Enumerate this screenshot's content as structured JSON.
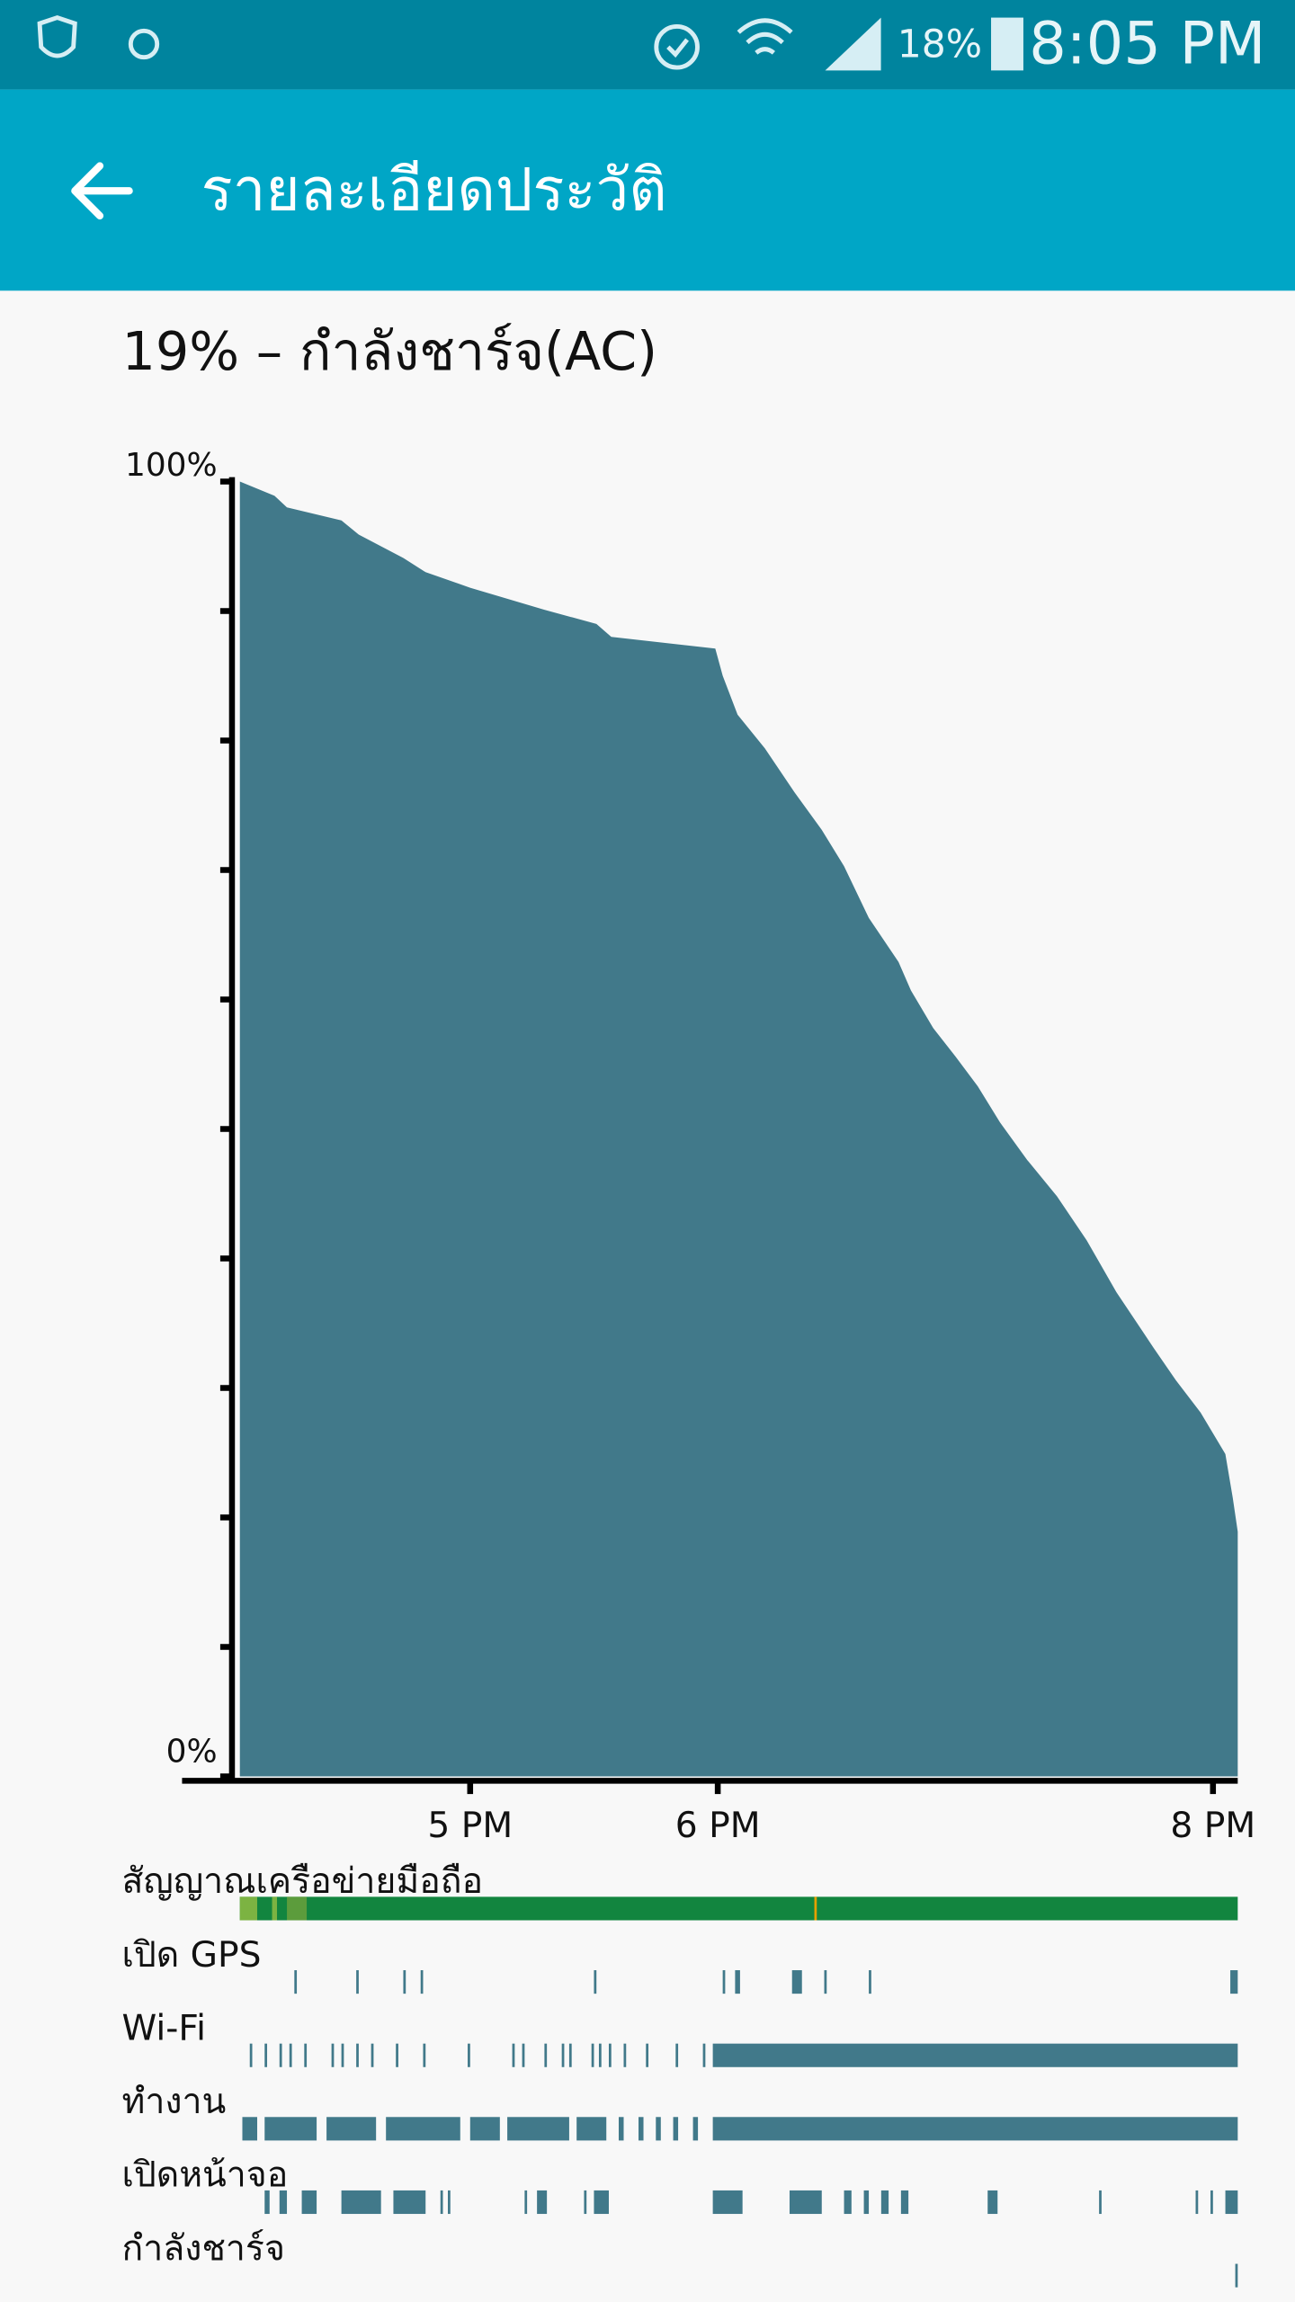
{
  "status_bar": {
    "battery": "18%",
    "time": "8:05 PM"
  },
  "app_bar": {
    "title": "รายละเอียดประวัติ"
  },
  "chart_data": {
    "type": "area",
    "title": "19% – กำลังชาร์จ(AC)",
    "x": [
      16.07,
      16.21,
      16.26,
      16.48,
      16.55,
      16.73,
      16.82,
      17.0,
      17.3,
      17.51,
      17.57,
      17.99,
      18.02,
      18.08,
      18.19,
      18.31,
      18.42,
      18.51,
      18.61,
      18.73,
      18.78,
      18.87,
      18.96,
      19.05,
      19.14,
      19.25,
      19.37,
      19.49,
      19.61,
      19.76,
      19.85,
      19.95,
      20.05,
      20.08,
      20.1
    ],
    "values": [
      100,
      98.9,
      98,
      97,
      95.9,
      94.1,
      93,
      91.8,
      90.1,
      89,
      88,
      87.1,
      85,
      82,
      79.4,
      76,
      73.1,
      70.3,
      66.3,
      62.9,
      60.7,
      57.8,
      55.6,
      53.3,
      50.5,
      47.6,
      44.8,
      41.4,
      37.4,
      33.1,
      30.6,
      28.1,
      24.9,
      21.5,
      18.9
    ],
    "color": "#41798a",
    "xlim": [
      16.05,
      20.1
    ],
    "xticks": [
      {
        "value": 17,
        "label": "5 PM"
      },
      {
        "value": 18,
        "label": "6 PM"
      },
      {
        "value": 20,
        "label": "8 PM"
      }
    ],
    "ylim": [
      0,
      100
    ],
    "yticks": [
      {
        "value": 0,
        "label": "0%"
      },
      {
        "value": 100,
        "label": "100%"
      }
    ],
    "yminor_ticks": [
      10,
      20,
      30,
      40,
      50,
      60,
      70,
      80,
      90
    ],
    "activity": [
      {
        "name": "สัญญาณเครือข่ายมือถือ",
        "color": "#12853f",
        "segments": [
          [
            16.07,
            20.1
          ],
          [
            16.07,
            16.14
          ],
          [
            16.2,
            16.22
          ],
          [
            16.26,
            16.34
          ],
          [
            18.39,
            18.4
          ]
        ],
        "segment_colors": [
          "#12853f",
          "#7cb342",
          "#7cb342",
          "#5c9c3c",
          "#e5a000"
        ]
      },
      {
        "name": "เปิด GPS",
        "color": "#41798a",
        "segments": [
          [
            16.29,
            16.3
          ],
          [
            16.54,
            16.55
          ],
          [
            16.73,
            16.74
          ],
          [
            16.8,
            16.81
          ],
          [
            17.5,
            17.51
          ],
          [
            18.02,
            18.03
          ],
          [
            18.07,
            18.09
          ],
          [
            18.3,
            18.34
          ],
          [
            18.43,
            18.44
          ],
          [
            18.61,
            18.62
          ],
          [
            20.07,
            20.1
          ]
        ]
      },
      {
        "name": "Wi-Fi",
        "color": "#41798a",
        "segments": [
          [
            16.11,
            16.12
          ],
          [
            16.17,
            16.18
          ],
          [
            16.23,
            16.24
          ],
          [
            16.27,
            16.28
          ],
          [
            16.33,
            16.34
          ],
          [
            16.44,
            16.45
          ],
          [
            16.48,
            16.49
          ],
          [
            16.54,
            16.55
          ],
          [
            16.6,
            16.61
          ],
          [
            16.7,
            16.71
          ],
          [
            16.81,
            16.82
          ],
          [
            16.99,
            17.0
          ],
          [
            17.17,
            17.18
          ],
          [
            17.21,
            17.22
          ],
          [
            17.3,
            17.31
          ],
          [
            17.37,
            17.38
          ],
          [
            17.4,
            17.41
          ],
          [
            17.49,
            17.5
          ],
          [
            17.52,
            17.53
          ],
          [
            17.56,
            17.57
          ],
          [
            17.62,
            17.63
          ],
          [
            17.71,
            17.72
          ],
          [
            17.83,
            17.84
          ],
          [
            17.94,
            17.95
          ],
          [
            17.98,
            20.1
          ]
        ]
      },
      {
        "name": "ทำงาน",
        "color": "#41798a",
        "segments": [
          [
            16.08,
            16.14
          ],
          [
            16.17,
            16.38
          ],
          [
            16.42,
            16.62
          ],
          [
            16.66,
            16.96
          ],
          [
            17.0,
            17.12
          ],
          [
            17.15,
            17.4
          ],
          [
            17.43,
            17.55
          ],
          [
            17.6,
            17.62
          ],
          [
            17.68,
            17.7
          ],
          [
            17.75,
            17.77
          ],
          [
            17.82,
            17.84
          ],
          [
            17.9,
            17.92
          ],
          [
            17.98,
            20.1
          ]
        ]
      },
      {
        "name": "เปิดหน้าจอ",
        "color": "#41798a",
        "segments": [
          [
            16.17,
            16.19
          ],
          [
            16.23,
            16.26
          ],
          [
            16.32,
            16.38
          ],
          [
            16.48,
            16.64
          ],
          [
            16.69,
            16.82
          ],
          [
            16.88,
            16.89
          ],
          [
            16.91,
            16.92
          ],
          [
            17.22,
            17.23
          ],
          [
            17.27,
            17.31
          ],
          [
            17.46,
            17.47
          ],
          [
            17.5,
            17.56
          ],
          [
            17.98,
            18.1
          ],
          [
            18.29,
            18.42
          ],
          [
            18.51,
            18.54
          ],
          [
            18.59,
            18.61
          ],
          [
            18.66,
            18.69
          ],
          [
            18.74,
            18.77
          ],
          [
            19.09,
            19.13
          ],
          [
            19.54,
            19.55
          ],
          [
            19.93,
            19.94
          ],
          [
            19.99,
            20.0
          ],
          [
            20.05,
            20.1
          ]
        ]
      },
      {
        "name": "กำลังชาร์จ",
        "color": "#41798a",
        "segments": [
          [
            20.09,
            20.1
          ]
        ]
      }
    ]
  }
}
